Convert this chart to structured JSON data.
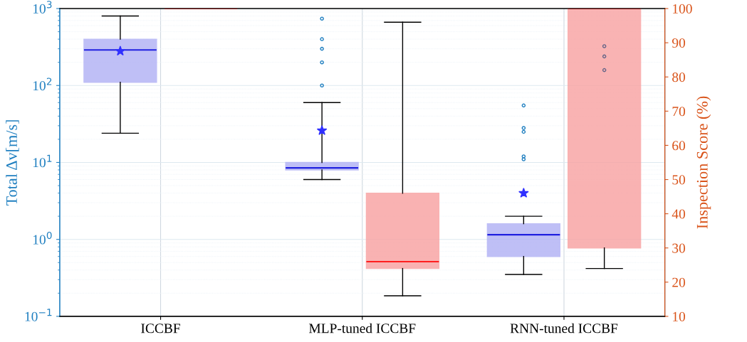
{
  "chart_data": {
    "type": "box",
    "categories": [
      "ICCBF",
      "MLP-tuned ICCBF",
      "RNN-tuned ICCBF"
    ],
    "ylabel": "Total Δv[m/s]",
    "y2label": "Inspection Score (%)",
    "log": "y",
    "grid": true,
    "legend": false,
    "ylim": [
      0.1,
      1000
    ],
    "yticks": [
      {
        "value": 0.1,
        "label": "10$^{−1}$"
      },
      {
        "value": 1,
        "label": "10$^{0}$"
      },
      {
        "value": 10,
        "label": "10$^{1}$"
      },
      {
        "value": 100,
        "label": "10$^{2}$"
      },
      {
        "value": 1000,
        "label": "10$^{3}$"
      }
    ],
    "y2lim": [
      10,
      100
    ],
    "y2ticks": [
      10,
      20,
      30,
      40,
      50,
      60,
      70,
      80,
      90,
      100
    ],
    "series": [
      {
        "color": "#b0b0f5",
        "axis": "y",
        "boxes": [
          {
            "low": 24,
            "q1": 110,
            "median": 290,
            "q3": 400,
            "high": 800,
            "mean": 280
          },
          {
            "low": 6,
            "q1": 8,
            "median": 8.5,
            "q3": 10,
            "high": 60,
            "mean": 26,
            "outliers": [
              100,
              200,
              300,
              400,
              740
            ]
          },
          {
            "low": 0.35,
            "q1": 0.6,
            "median": 1.15,
            "q3": 1.6,
            "high": 2,
            "mean": 4,
            "outliers": [
              11,
              12,
              25,
              28,
              55
            ]
          }
        ]
      },
      {
        "color": "#f8a0a0",
        "axis": "y2",
        "boxes": [
          {
            "low": 100,
            "q1": 100,
            "median": 100,
            "q3": 100,
            "high": 100
          },
          {
            "low": 16,
            "q1": 24,
            "median": 26,
            "q3": 46,
            "high": 96
          },
          {
            "low": 24,
            "q1": 30,
            "median": 100,
            "q3": 100,
            "high": 100,
            "outliers": [
              89,
              86,
              82
            ]
          }
        ]
      }
    ]
  }
}
